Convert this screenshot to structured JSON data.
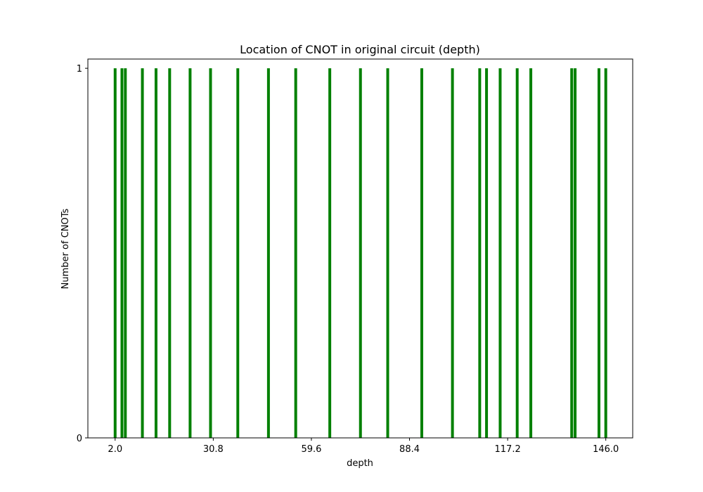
{
  "chart_data": {
    "type": "bar",
    "title": "Location of CNOT in original circuit (depth)",
    "xlabel": "depth",
    "ylabel": "Number of CNOTs",
    "x_ticks": [
      "2.0",
      "30.8",
      "59.6",
      "88.4",
      "117.2",
      "146.0"
    ],
    "y_ticks": [
      "0",
      "1"
    ],
    "xlim": [
      -6.0,
      153.9
    ],
    "ylim": [
      0,
      1.025
    ],
    "bar_color": "#008000",
    "grid": false,
    "series": [
      {
        "x": [
          2,
          4,
          5,
          10,
          14,
          18,
          24,
          30,
          38,
          47,
          55,
          65,
          74,
          82,
          92,
          101,
          109,
          111,
          115,
          120,
          124,
          136,
          137,
          144,
          146
        ],
        "values": [
          1,
          1,
          1,
          1,
          1,
          1,
          1,
          1,
          1,
          1,
          1,
          1,
          1,
          1,
          1,
          1,
          1,
          1,
          1,
          1,
          1,
          1,
          1,
          1,
          1
        ]
      }
    ]
  }
}
